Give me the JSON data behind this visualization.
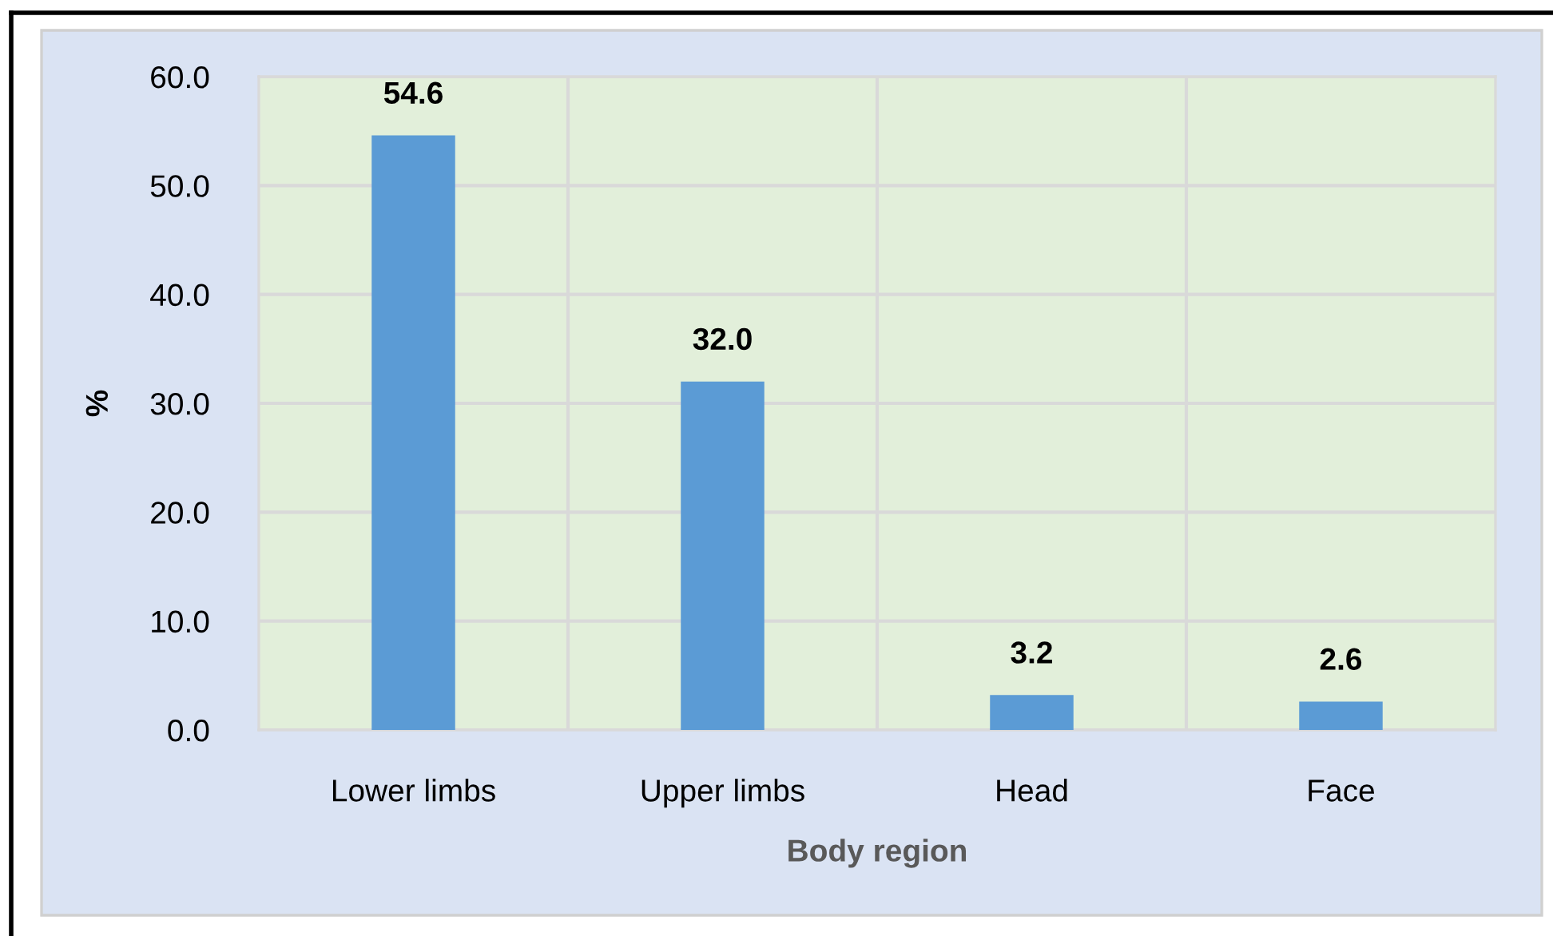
{
  "chart_data": {
    "type": "bar",
    "categories": [
      "Lower limbs",
      "Upper limbs",
      "Head",
      "Face"
    ],
    "values": [
      54.6,
      32.0,
      3.2,
      2.6
    ],
    "value_labels": [
      "54.6",
      "32.0",
      "3.2",
      "2.6"
    ],
    "color": "#5b9bd5",
    "xlabel": "Body region",
    "ylabel": "%",
    "ylim": [
      0,
      60
    ],
    "yticks": [
      {
        "value": 0,
        "label": "0.0"
      },
      {
        "value": 10,
        "label": "10.0"
      },
      {
        "value": 20,
        "label": "20.0"
      },
      {
        "value": 30,
        "label": "30.0"
      },
      {
        "value": 40,
        "label": "40.0"
      },
      {
        "value": 50,
        "label": "50.0"
      },
      {
        "value": 60,
        "label": "60.0"
      }
    ],
    "grid": true
  }
}
